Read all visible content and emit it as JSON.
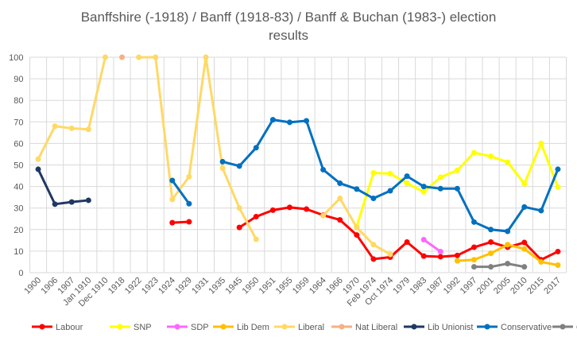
{
  "chart_data": {
    "type": "line",
    "title": [
      "Banffshire (-1918) / Banff (1918-83) / Banff & Buchan (1983-) election",
      "results"
    ],
    "xlabel": "",
    "ylabel": "",
    "ylim": [
      0,
      100
    ],
    "yticks": [
      0,
      10,
      20,
      30,
      40,
      50,
      60,
      70,
      80,
      90,
      100
    ],
    "grid": true,
    "legend": "bottom",
    "categories": [
      "1900",
      "1906",
      "1907",
      "Jan 1910",
      "Dec 1910",
      "1918",
      "1922",
      "1923",
      "1924",
      "1929",
      "1931",
      "1935",
      "1945",
      "1950",
      "1951",
      "1955",
      "1959",
      "1964",
      "1966",
      "1970",
      "Feb 1974",
      "Oct 1974",
      "1979",
      "1983",
      "1987",
      "1992",
      "1997",
      "2001",
      "2005",
      "2010",
      "2015",
      "2017"
    ],
    "series": [
      {
        "name": "Labour",
        "color": "#FF0000",
        "values": [
          null,
          null,
          null,
          null,
          null,
          null,
          null,
          null,
          23.2,
          23.6,
          null,
          null,
          21,
          26,
          29,
          30.3,
          29.5,
          26.7,
          24.5,
          17.5,
          6.3,
          7.2,
          14.2,
          7.7,
          7.4,
          8,
          11.8,
          14.2,
          11.8,
          14,
          6,
          9.8
        ]
      },
      {
        "name": "SNP",
        "color": "#FFFF00",
        "values": [
          null,
          null,
          null,
          null,
          null,
          null,
          null,
          null,
          null,
          null,
          null,
          null,
          null,
          null,
          null,
          null,
          null,
          null,
          null,
          21.5,
          46.3,
          46,
          41.5,
          37.5,
          44.3,
          47.5,
          55.7,
          54,
          51.3,
          41.3,
          60,
          39.7
        ]
      },
      {
        "name": "SDP",
        "color": "#FF66FF",
        "values": [
          null,
          null,
          null,
          null,
          null,
          null,
          null,
          null,
          null,
          null,
          null,
          null,
          null,
          null,
          null,
          null,
          null,
          null,
          null,
          null,
          null,
          null,
          null,
          15.3,
          9.8,
          null,
          null,
          null,
          null,
          null,
          null,
          null
        ]
      },
      {
        "name": "Lib Dem",
        "color": "#FFC000",
        "values": [
          null,
          null,
          null,
          null,
          null,
          null,
          null,
          null,
          null,
          null,
          null,
          null,
          null,
          null,
          null,
          null,
          null,
          null,
          null,
          null,
          null,
          null,
          null,
          null,
          null,
          5.5,
          6,
          9,
          13,
          11,
          5,
          3.5
        ]
      },
      {
        "name": "Liberal",
        "color": "#FFD966",
        "values": [
          52.7,
          68,
          67,
          66.5,
          100,
          null,
          100,
          100,
          34,
          44.5,
          100,
          48.5,
          30,
          15.5,
          null,
          null,
          null,
          26.5,
          34.5,
          21,
          13,
          8.5,
          null,
          null,
          null,
          null,
          null,
          null,
          null,
          null,
          null,
          null
        ]
      },
      {
        "name": "Nat Liberal",
        "color": "#F4B183",
        "values": [
          null,
          null,
          null,
          null,
          null,
          100,
          null,
          null,
          null,
          null,
          null,
          null,
          null,
          null,
          null,
          null,
          null,
          null,
          null,
          null,
          null,
          null,
          null,
          null,
          null,
          null,
          null,
          null,
          null,
          null,
          null,
          null
        ]
      },
      {
        "name": "Lib Unionist",
        "color": "#203864",
        "values": [
          48,
          31.8,
          32.8,
          33.6,
          null,
          null,
          null,
          null,
          null,
          null,
          null,
          null,
          null,
          null,
          null,
          null,
          null,
          null,
          null,
          null,
          null,
          null,
          null,
          null,
          null,
          null,
          null,
          null,
          null,
          null,
          null,
          null
        ]
      },
      {
        "name": "Conservative",
        "color": "#0070C0",
        "values": [
          null,
          null,
          null,
          null,
          null,
          null,
          null,
          null,
          42.8,
          32,
          null,
          51.5,
          49.5,
          58,
          71,
          69.8,
          70.5,
          47.8,
          41.5,
          38.8,
          34.5,
          38,
          44.8,
          40,
          39,
          39,
          23.5,
          20,
          19.2,
          30.5,
          28.8,
          48
        ]
      },
      {
        "name": "Others",
        "color": "#808080",
        "values": [
          null,
          null,
          null,
          null,
          null,
          null,
          null,
          null,
          null,
          null,
          null,
          null,
          null,
          null,
          null,
          null,
          null,
          null,
          null,
          null,
          null,
          null,
          null,
          null,
          null,
          null,
          2.7,
          2.7,
          4.2,
          2.7,
          null,
          null
        ]
      }
    ]
  }
}
